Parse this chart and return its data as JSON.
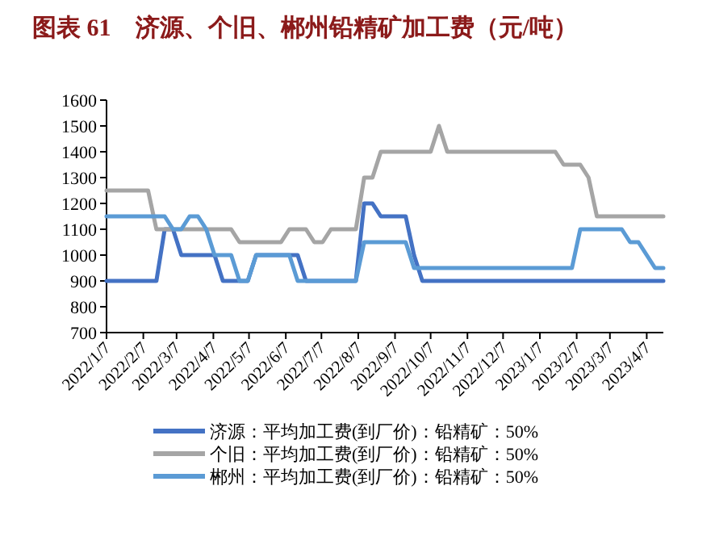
{
  "chart_data": {
    "type": "line",
    "title": "图表 61　济源、个旧、郴州铅精矿加工费（元/吨）",
    "x": [
      "2022-01-07",
      "2022-01-14",
      "2022-01-21",
      "2022-01-28",
      "2022-02-04",
      "2022-02-11",
      "2022-02-18",
      "2022-02-25",
      "2022-03-04",
      "2022-03-11",
      "2022-03-18",
      "2022-03-25",
      "2022-04-01",
      "2022-04-08",
      "2022-04-15",
      "2022-04-22",
      "2022-04-29",
      "2022-05-06",
      "2022-05-13",
      "2022-05-20",
      "2022-05-27",
      "2022-06-03",
      "2022-06-10",
      "2022-06-17",
      "2022-06-24",
      "2022-07-01",
      "2022-07-08",
      "2022-07-15",
      "2022-07-22",
      "2022-07-29",
      "2022-08-05",
      "2022-08-12",
      "2022-08-19",
      "2022-08-26",
      "2022-09-02",
      "2022-09-09",
      "2022-09-16",
      "2022-09-23",
      "2022-09-30",
      "2022-10-07",
      "2022-10-14",
      "2022-10-21",
      "2022-10-28",
      "2022-11-04",
      "2022-11-11",
      "2022-11-18",
      "2022-11-25",
      "2022-12-02",
      "2022-12-09",
      "2022-12-16",
      "2022-12-23",
      "2022-12-30",
      "2023-01-06",
      "2023-01-13",
      "2023-01-20",
      "2023-01-27",
      "2023-02-03",
      "2023-02-10",
      "2023-02-17",
      "2023-02-24",
      "2023-03-03",
      "2023-03-10",
      "2023-03-17",
      "2023-03-24",
      "2023-03-31",
      "2023-04-07",
      "2023-04-14",
      "2023-04-21"
    ],
    "series": [
      {
        "name": "济源：平均加工费(到厂价)：铅精矿：50%",
        "color": "#4472c4",
        "values": [
          900,
          900,
          900,
          900,
          900,
          900,
          900,
          1100,
          1100,
          1000,
          1000,
          1000,
          1000,
          1000,
          900,
          900,
          900,
          900,
          1000,
          1000,
          1000,
          1000,
          1000,
          1000,
          900,
          900,
          900,
          900,
          900,
          900,
          900,
          1200,
          1200,
          1150,
          1150,
          1150,
          1150,
          1000,
          900,
          900,
          900,
          900,
          900,
          900,
          900,
          900,
          900,
          900,
          900,
          900,
          900,
          900,
          900,
          900,
          900,
          900,
          900,
          900,
          900,
          900,
          900,
          900,
          900,
          900,
          900,
          900,
          900,
          900
        ]
      },
      {
        "name": "个旧：平均加工费(到厂价)：铅精矿：50%",
        "color": "#a5a5a5",
        "values": [
          1250,
          1250,
          1250,
          1250,
          1250,
          1250,
          1100,
          1100,
          1100,
          1100,
          1100,
          1100,
          1100,
          1100,
          1100,
          1100,
          1050,
          1050,
          1050,
          1050,
          1050,
          1050,
          1100,
          1100,
          1100,
          1050,
          1050,
          1100,
          1100,
          1100,
          1100,
          1300,
          1300,
          1400,
          1400,
          1400,
          1400,
          1400,
          1400,
          1400,
          1500,
          1400,
          1400,
          1400,
          1400,
          1400,
          1400,
          1400,
          1400,
          1400,
          1400,
          1400,
          1400,
          1400,
          1400,
          1350,
          1350,
          1350,
          1300,
          1150,
          1150,
          1150,
          1150,
          1150,
          1150,
          1150,
          1150,
          1150
        ]
      },
      {
        "name": "郴州：平均加工费(到厂价)：铅精矿：50%",
        "color": "#5b9bd5",
        "values": [
          1150,
          1150,
          1150,
          1150,
          1150,
          1150,
          1150,
          1150,
          1100,
          1100,
          1150,
          1150,
          1100,
          1000,
          1000,
          1000,
          900,
          900,
          1000,
          1000,
          1000,
          1000,
          1000,
          900,
          900,
          900,
          900,
          900,
          900,
          900,
          900,
          1050,
          1050,
          1050,
          1050,
          1050,
          1050,
          950,
          950,
          950,
          950,
          950,
          950,
          950,
          950,
          950,
          950,
          950,
          950,
          950,
          950,
          950,
          950,
          950,
          950,
          950,
          950,
          1100,
          1100,
          1100,
          1100,
          1100,
          1100,
          1050,
          1050,
          1000,
          950,
          950
        ]
      }
    ],
    "xlim": [
      "2022-01-07",
      "2023-04-21"
    ],
    "xticks": [
      {
        "value": "2022-01-07",
        "label": "2022/1/7"
      },
      {
        "value": "2022-02-07",
        "label": "2022/2/7"
      },
      {
        "value": "2022-03-07",
        "label": "2022/3/7"
      },
      {
        "value": "2022-04-07",
        "label": "2022/4/7"
      },
      {
        "value": "2022-05-07",
        "label": "2022/5/7"
      },
      {
        "value": "2022-06-07",
        "label": "2022/6/7"
      },
      {
        "value": "2022-07-07",
        "label": "2022/7/7"
      },
      {
        "value": "2022-08-07",
        "label": "2022/8/7"
      },
      {
        "value": "2022-09-07",
        "label": "2022/9/7"
      },
      {
        "value": "2022-10-07",
        "label": "2022/10/7"
      },
      {
        "value": "2022-11-07",
        "label": "2022/11/7"
      },
      {
        "value": "2022-12-07",
        "label": "2022/12/7"
      },
      {
        "value": "2023-01-07",
        "label": "2023/1/7"
      },
      {
        "value": "2023-02-07",
        "label": "2023/2/7"
      },
      {
        "value": "2023-03-07",
        "label": "2023/3/7"
      },
      {
        "value": "2023-04-07",
        "label": "2023/4/7"
      }
    ],
    "ylim": [
      700,
      1600
    ],
    "yticks": [
      700,
      800,
      900,
      1000,
      1100,
      1200,
      1300,
      1400,
      1500,
      1600
    ],
    "legend": "bottom",
    "grid": false
  }
}
